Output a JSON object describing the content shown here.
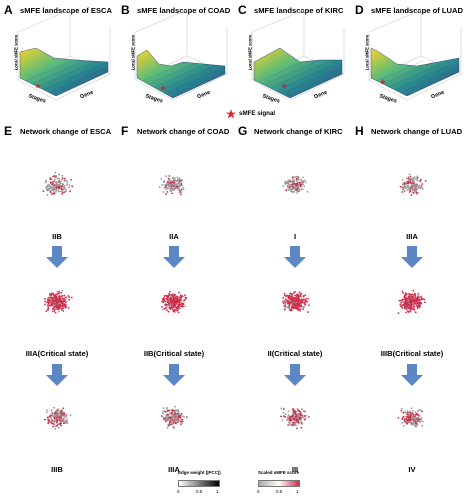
{
  "top_panels": [
    {
      "letter": "A",
      "title": "sMFE landscape of ESCA",
      "zlabel": "Local sMFE score",
      "xlabel": "Stages",
      "ylabel": "Gene"
    },
    {
      "letter": "B",
      "title": "sMFE landscape of COAD",
      "zlabel": "Local sMFE score",
      "xlabel": "Stages",
      "ylabel": "Gene"
    },
    {
      "letter": "C",
      "title": "sMFE landscape of KIRC",
      "zlabel": "Local sMFE score",
      "xlabel": "Stages",
      "ylabel": "Gene"
    },
    {
      "letter": "D",
      "title": "sMFE landscape of LUAD",
      "zlabel": "Local sMFE score",
      "xlabel": "Stages",
      "ylabel": "Gene"
    }
  ],
  "signal_legend": "sMFE signal",
  "network_panels": [
    {
      "letter": "E",
      "title": "Network change of ESCA",
      "stages": [
        "IIB",
        "IIIA(Critical state)",
        "IIIB"
      ]
    },
    {
      "letter": "F",
      "title": "Network change of COAD",
      "stages": [
        "IIA",
        "IIB(Critical state)",
        "IIIA"
      ]
    },
    {
      "letter": "G",
      "title": "Network change of KIRC",
      "stages": [
        "I",
        "II(Critical state)",
        "III"
      ]
    },
    {
      "letter": "H",
      "title": "Network change of LUAD",
      "stages": [
        "IIIA",
        "IIIB(Critical state)",
        "IV"
      ]
    }
  ],
  "legends": {
    "edge_weight": {
      "title": "Edge weight (|PCC|)",
      "ticks": [
        "0",
        "0.5",
        "1"
      ]
    },
    "scaled_smfe": {
      "title": "Scaled sMFE score",
      "ticks": [
        "0",
        "0.5",
        "1"
      ]
    }
  },
  "colors": {
    "arrow": "#5b87c5",
    "node_red": "#d12c4a",
    "node_grey": "#9a9a9a",
    "signal_star": "#e0202a"
  }
}
